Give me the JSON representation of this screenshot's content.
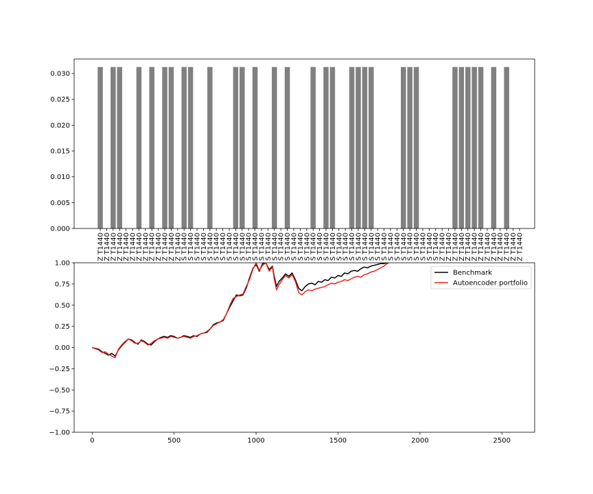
{
  "chart_data": [
    {
      "type": "bar",
      "title": "",
      "xlabel": "",
      "ylabel": "",
      "ylim": [
        0,
        0.0328
      ],
      "yticks": [
        "0.000",
        "0.005",
        "0.010",
        "0.015",
        "0.020",
        "0.025",
        "0.030"
      ],
      "ytick_values": [
        0,
        0.005,
        0.01,
        0.015,
        0.02,
        0.025,
        0.03
      ],
      "bar_color": "#808080",
      "categories": [
        "Z T1440",
        "Z T1440",
        "Z T1440",
        "Z T1440",
        "Z T1440",
        "Z T1440",
        "Z T1440",
        "Z T1440",
        "Z T1440",
        "Z T1440",
        "Z T1440",
        "Z T1440",
        "Z T1440",
        "S T1440",
        "S T1440",
        "S T1440",
        "S T1440",
        "S T1440",
        "S T1440",
        "S T1440",
        "S T1440",
        "S T1440",
        "S T1440",
        "S T1440",
        "S T1440",
        "S T1440",
        "S T1440",
        "S T1440",
        "S T1440",
        "S T1440",
        "S T1440",
        "S T1440",
        "S T1440",
        "S T1440",
        "S T1440",
        "S T1440",
        "S T1440",
        "S T1440",
        "S T1440",
        "S T1440",
        "S T1440",
        "S T1440",
        "S T1440",
        "S T1440",
        "S T1440",
        "S T1440",
        "S T1440",
        "S T1440",
        "S T1440",
        "S T1440",
        "S T1440",
        "S T1440",
        "S T1440",
        "Z T1440",
        "Z T1440",
        "Z T1440",
        "Z T1440",
        "Z T1440",
        "Z T1440",
        "Z T1440",
        "Z T1440",
        "Z T1440",
        "Z T1440",
        "Z T1440",
        "Z T1440",
        "Z T1440"
      ],
      "values": [
        0.03125,
        0,
        0.03125,
        0.03125,
        0,
        0,
        0.03125,
        0,
        0.03125,
        0,
        0.03125,
        0.03125,
        0,
        0.03125,
        0.03125,
        0,
        0,
        0.03125,
        0,
        0,
        0,
        0.03125,
        0.03125,
        0,
        0.03125,
        0,
        0,
        0.03125,
        0,
        0.03125,
        0,
        0,
        0,
        0.03125,
        0,
        0.03125,
        0.03125,
        0,
        0,
        0.03125,
        0.03125,
        0.03125,
        0.03125,
        0,
        0,
        0,
        0,
        0.03125,
        0.03125,
        0.03125,
        0,
        0,
        0,
        0,
        0,
        0.03125,
        0.03125,
        0.03125,
        0.03125,
        0.03125,
        0,
        0.03125,
        0,
        0.03125,
        0,
        0
      ]
    },
    {
      "type": "line",
      "title": "",
      "xlabel": "",
      "ylabel": "",
      "xlim": [
        -110,
        2700
      ],
      "ylim": [
        -1.0,
        1.0
      ],
      "xticks": [
        "0",
        "500",
        "1000",
        "1500",
        "2000",
        "2500"
      ],
      "xtick_values": [
        0,
        500,
        1000,
        1500,
        2000,
        2500
      ],
      "yticks": [
        "−1.00",
        "−0.75",
        "−0.50",
        "−0.25",
        "0.00",
        "0.25",
        "0.50",
        "0.75",
        "1.00"
      ],
      "ytick_values": [
        -1,
        -0.75,
        -0.5,
        -0.25,
        0,
        0.25,
        0.5,
        0.75,
        1
      ],
      "legend_position": "top-right",
      "series": [
        {
          "name": "Benchmark",
          "color": "#000000",
          "x": [
            0,
            40,
            60,
            80,
            100,
            120,
            140,
            160,
            180,
            200,
            220,
            240,
            260,
            280,
            300,
            320,
            340,
            360,
            380,
            400,
            420,
            440,
            460,
            480,
            500,
            520,
            540,
            560,
            580,
            600,
            620,
            640,
            660,
            680,
            700,
            720,
            740,
            760,
            780,
            800,
            820,
            840,
            860,
            880,
            900,
            920,
            940,
            960,
            980,
            1000,
            1020,
            1040,
            1060,
            1080,
            1100,
            1110,
            1125,
            1140,
            1160,
            1180,
            1200,
            1220,
            1240,
            1260,
            1280,
            1300,
            1320,
            1340,
            1360,
            1380,
            1400,
            1420,
            1440,
            1460,
            1480,
            1500,
            1520,
            1540,
            1560,
            1580,
            1600,
            1620,
            1640,
            1660,
            1680,
            1700,
            1720,
            1740,
            1760,
            1780,
            1800,
            1810
          ],
          "values": [
            0,
            -0.02,
            -0.05,
            -0.07,
            -0.09,
            -0.07,
            -0.1,
            -0.03,
            0.02,
            0.06,
            0.1,
            0.09,
            0.06,
            0.04,
            0.09,
            0.07,
            0.04,
            0.03,
            0.07,
            0.1,
            0.12,
            0.13,
            0.12,
            0.14,
            0.13,
            0.11,
            0.12,
            0.14,
            0.13,
            0.12,
            0.14,
            0.13,
            0.16,
            0.17,
            0.18,
            0.22,
            0.27,
            0.29,
            0.3,
            0.32,
            0.4,
            0.48,
            0.55,
            0.62,
            0.61,
            0.62,
            0.7,
            0.82,
            0.93,
            0.98,
            0.9,
            0.99,
            1.0,
            0.92,
            0.96,
            0.85,
            0.72,
            0.78,
            0.82,
            0.87,
            0.84,
            0.88,
            0.8,
            0.7,
            0.67,
            0.72,
            0.75,
            0.76,
            0.74,
            0.78,
            0.77,
            0.8,
            0.79,
            0.83,
            0.82,
            0.85,
            0.84,
            0.88,
            0.87,
            0.9,
            0.91,
            0.9,
            0.93,
            0.95,
            0.94,
            0.96,
            0.97,
            0.98,
            0.99,
            0.99,
            1.0,
            1.0
          ]
        },
        {
          "name": "Autoencoder portfolio",
          "color": "#e8251b",
          "x": [
            0,
            40,
            60,
            80,
            100,
            120,
            140,
            160,
            180,
            200,
            220,
            240,
            260,
            280,
            300,
            320,
            340,
            360,
            380,
            400,
            420,
            440,
            460,
            480,
            500,
            520,
            540,
            560,
            580,
            600,
            620,
            640,
            660,
            680,
            700,
            720,
            740,
            760,
            780,
            800,
            820,
            840,
            860,
            880,
            900,
            920,
            940,
            960,
            980,
            1000,
            1020,
            1040,
            1060,
            1080,
            1100,
            1110,
            1125,
            1140,
            1160,
            1180,
            1200,
            1220,
            1240,
            1260,
            1280,
            1300,
            1320,
            1340,
            1360,
            1380,
            1400,
            1420,
            1440,
            1460,
            1480,
            1500,
            1520,
            1540,
            1560,
            1580,
            1600,
            1620,
            1640,
            1660,
            1680,
            1700,
            1720,
            1740,
            1760,
            1780,
            1800,
            1810
          ],
          "values": [
            0,
            -0.03,
            -0.06,
            -0.05,
            -0.08,
            -0.1,
            -0.12,
            -0.02,
            0.03,
            0.07,
            0.1,
            0.08,
            0.05,
            0.05,
            0.08,
            0.06,
            0.03,
            0.05,
            0.08,
            0.1,
            0.11,
            0.12,
            0.11,
            0.13,
            0.12,
            0.11,
            0.12,
            0.13,
            0.12,
            0.11,
            0.13,
            0.14,
            0.16,
            0.17,
            0.19,
            0.22,
            0.26,
            0.28,
            0.3,
            0.33,
            0.4,
            0.5,
            0.58,
            0.6,
            0.62,
            0.63,
            0.72,
            0.8,
            0.92,
            1.0,
            0.91,
            0.97,
            1.0,
            0.9,
            0.95,
            0.82,
            0.68,
            0.74,
            0.8,
            0.85,
            0.82,
            0.86,
            0.78,
            0.65,
            0.62,
            0.66,
            0.68,
            0.67,
            0.69,
            0.7,
            0.71,
            0.72,
            0.74,
            0.76,
            0.75,
            0.77,
            0.78,
            0.8,
            0.79,
            0.81,
            0.83,
            0.84,
            0.83,
            0.86,
            0.87,
            0.89,
            0.9,
            0.92,
            0.94,
            0.96,
            0.99,
            1.0
          ]
        }
      ]
    }
  ]
}
